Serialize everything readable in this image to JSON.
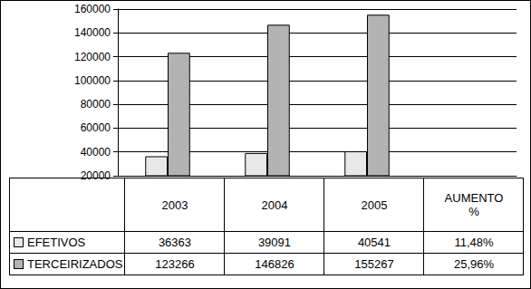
{
  "chart_data": {
    "type": "bar",
    "categories": [
      "2003",
      "2004",
      "2005"
    ],
    "increase_header": "AUMENTO %",
    "series": [
      {
        "name": "EFETIVOS",
        "color": "#e8e8e8",
        "values": [
          36363,
          39091,
          40541
        ],
        "increase": {
          "value": 11.48,
          "label": "11,48%"
        }
      },
      {
        "name": "TERCEIRIZADOS",
        "color": "#b3b3b3",
        "values": [
          123266,
          146826,
          155267
        ],
        "increase": {
          "value": 25.96,
          "label": "25,96%"
        }
      }
    ],
    "ylim": [
      20000,
      160000
    ],
    "yticks": [
      20000,
      40000,
      60000,
      80000,
      100000,
      120000,
      140000,
      160000
    ],
    "grid": true
  }
}
